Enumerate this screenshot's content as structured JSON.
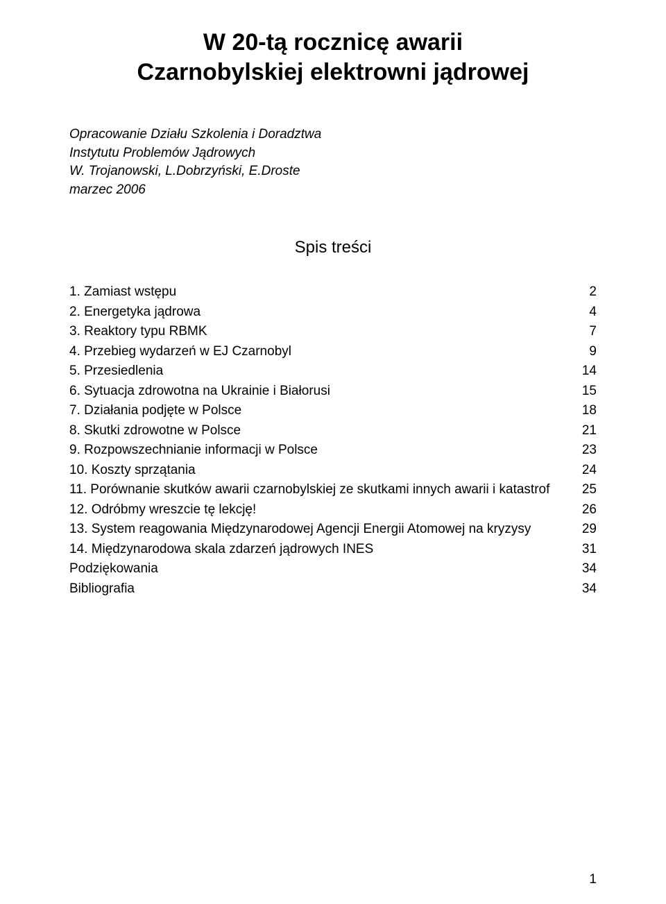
{
  "title": {
    "line1": "W 20-tą rocznicę awarii",
    "line2": "Czarnobylskiej elektrowni jądrowej"
  },
  "attribution": {
    "line1": "Opracowanie Działu Szkolenia i Doradztwa",
    "line2": "Instytutu Problemów Jądrowych",
    "line3": "W. Trojanowski, L.Dobrzyński, E.Droste",
    "line4": " marzec 2006"
  },
  "toc_heading": "Spis treści",
  "toc": [
    {
      "label": "1. Zamiast wstępu",
      "page": "2"
    },
    {
      "label": "2. Energetyka jądrowa",
      "page": "4"
    },
    {
      "label": "3. Reaktory typu RBMK",
      "page": "7"
    },
    {
      "label": "4. Przebieg wydarzeń w EJ Czarnobyl",
      "page": "9"
    },
    {
      "label": "5. Przesiedlenia",
      "page": "14"
    },
    {
      "label": "6. Sytuacja zdrowotna na Ukrainie i Białorusi",
      "page": "15"
    },
    {
      "label": "7. Działania podjęte w Polsce",
      "page": "18"
    },
    {
      "label": "8. Skutki zdrowotne w Polsce",
      "page": "21"
    },
    {
      "label": "9. Rozpowszechnianie informacji w Polsce",
      "page": "23"
    },
    {
      "label": "10. Koszty sprzątania",
      "page": "24"
    },
    {
      "label": "11. Porównanie skutków awarii czarnobylskiej ze skutkami innych awarii i katastrof",
      "page": "25"
    },
    {
      "label": "12. Odróbmy wreszcie tę lekcję!",
      "page": "26"
    },
    {
      "label": "13. System reagowania Międzynarodowej Agencji Energii Atomowej na kryzysy",
      "page": "29"
    },
    {
      "label": "14. Międzynarodowa skala zdarzeń jądrowych INES",
      "page": "31"
    },
    {
      "label": "Podziękowania",
      "page": "34"
    },
    {
      "label": "Bibliografia",
      "page": "34"
    }
  ],
  "footer_page": "1"
}
